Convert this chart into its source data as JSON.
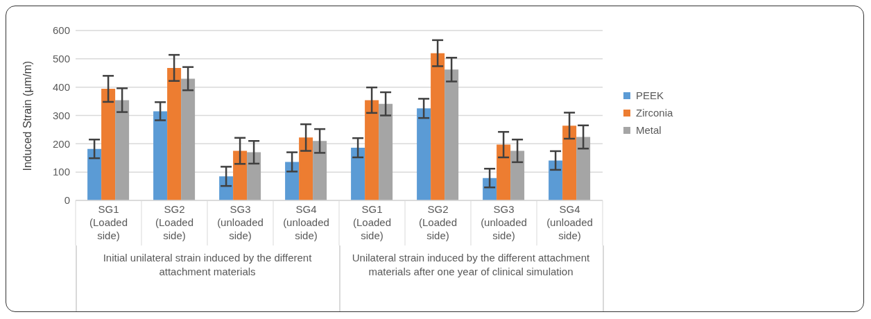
{
  "chart_data": {
    "type": "bar",
    "ylabel": "Induced Strain (µm/m)",
    "categories": [
      "SG1 (Loaded side)",
      "SG2 (Loaded side)",
      "SG3 (unloaded side)",
      "SG4 (unloaded side)",
      "SG1 (Loaded side)",
      "SG2 (Loaded side)",
      "SG3 (unloaded side)",
      "SG4 (unloaded side)"
    ],
    "series": [
      {
        "name": "PEEK",
        "color": "#5b9bd5",
        "values": [
          182,
          315,
          85,
          136,
          186,
          325,
          79,
          141
        ],
        "errors": [
          33,
          32,
          34,
          34,
          34,
          34,
          33,
          33
        ]
      },
      {
        "name": "Zirconia",
        "color": "#ed7d31",
        "values": [
          394,
          468,
          175,
          222,
          354,
          520,
          197,
          264
        ],
        "errors": [
          46,
          46,
          46,
          47,
          45,
          46,
          45,
          46
        ]
      },
      {
        "name": "Metal",
        "color": "#a5a5a5",
        "values": [
          354,
          430,
          170,
          210,
          341,
          462,
          175,
          224
        ],
        "errors": [
          42,
          41,
          40,
          42,
          41,
          42,
          40,
          41
        ]
      }
    ],
    "annotations": [
      "Initial unilateral strain induced by the different attachment materials",
      "Unilateral strain induced by the different attachment materials after one year of clinical simulation"
    ],
    "ylim": [
      0,
      600
    ],
    "yticks": [
      0,
      100,
      200,
      300,
      400,
      500,
      600
    ],
    "grid": "y",
    "legend": "right"
  }
}
